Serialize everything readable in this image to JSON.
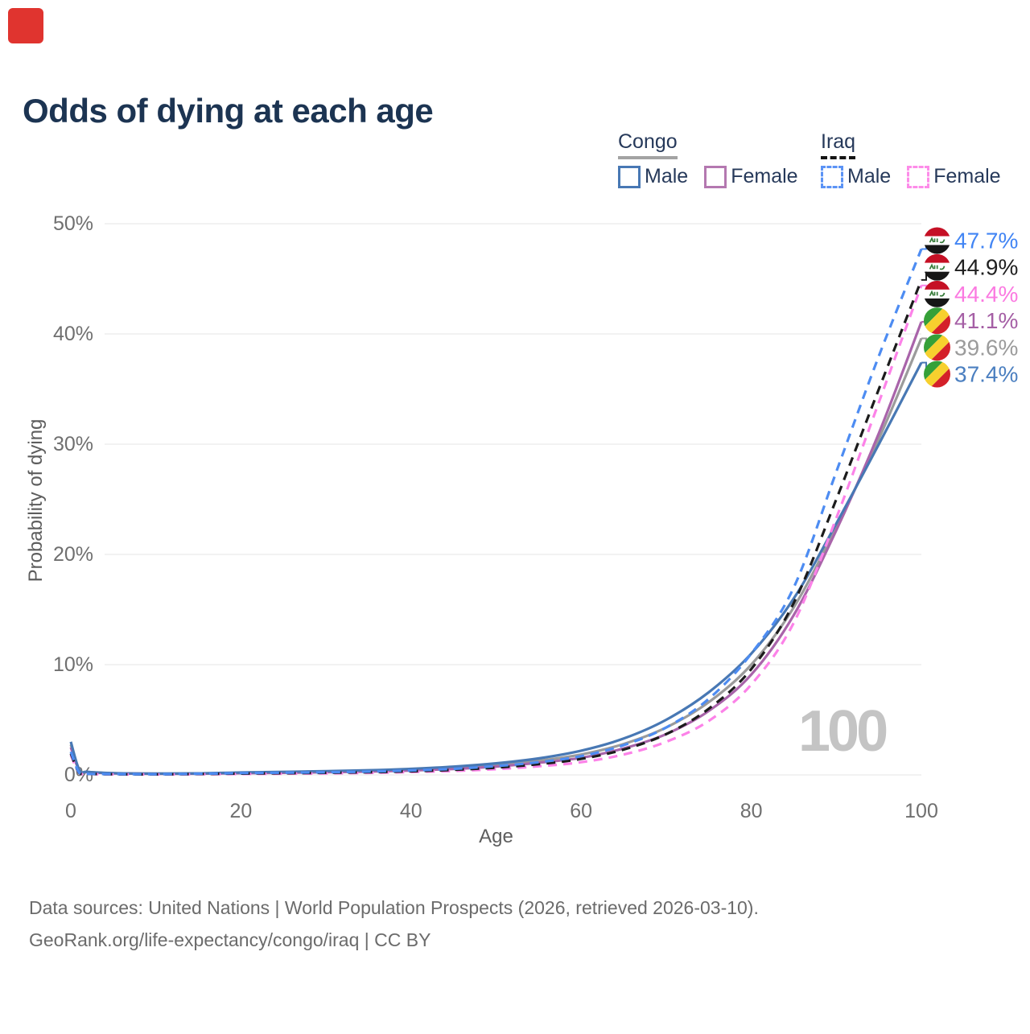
{
  "marker_color": "#e0342f",
  "title": "Odds of dying at each age",
  "legend": {
    "groups": [
      {
        "name": "Congo",
        "underline_style": "solid",
        "underline_color": "#a3a3a3",
        "items": [
          {
            "label": "Male",
            "color": "#4878b4",
            "dashed": false
          },
          {
            "label": "Female",
            "color": "#b478b0",
            "dashed": false
          }
        ]
      },
      {
        "name": "Iraq",
        "underline_style": "dashed",
        "underline_color": "#141414",
        "items": [
          {
            "label": "Male",
            "color": "#5b93f5",
            "dashed": true
          },
          {
            "label": "Female",
            "color": "#fd8ce9",
            "dashed": true
          }
        ]
      }
    ]
  },
  "chart_data": {
    "type": "line",
    "title": "Odds of dying at each age",
    "xlabel": "Age",
    "ylabel": "Probability of dying",
    "watermark": "100",
    "xlim": [
      0,
      100
    ],
    "ylim": [
      0,
      50
    ],
    "x_ticks": [
      0,
      20,
      40,
      60,
      80,
      100
    ],
    "y_ticks": [
      {
        "v": 0,
        "label": "0%"
      },
      {
        "v": 10,
        "label": "10%"
      },
      {
        "v": 20,
        "label": "20%"
      },
      {
        "v": 30,
        "label": "30%"
      },
      {
        "v": 40,
        "label": "40%"
      },
      {
        "v": 50,
        "label": "50%"
      }
    ],
    "grid": true,
    "legend_position": "top-right",
    "x": [
      0,
      1,
      2,
      5,
      10,
      15,
      20,
      25,
      30,
      35,
      40,
      45,
      50,
      55,
      60,
      65,
      70,
      75,
      80,
      85,
      90,
      95,
      100
    ],
    "series": [
      {
        "id": "congo-both",
        "country": "Congo",
        "sex": "both",
        "flag": "congo",
        "color": "#9b9b9b",
        "dashed": false,
        "values": [
          2.75,
          0.42,
          0.26,
          0.15,
          0.11,
          0.12,
          0.18,
          0.23,
          0.29,
          0.36,
          0.47,
          0.64,
          0.9,
          1.28,
          1.85,
          2.8,
          4.3,
          6.6,
          10.0,
          15.2,
          22.5,
          30.5,
          39.6
        ],
        "end_label": "39.6%",
        "label_color": "#9b9b9b"
      },
      {
        "id": "congo-female",
        "country": "Congo",
        "sex": "female",
        "flag": "congo",
        "color": "#a964aa",
        "dashed": false,
        "values": [
          2.5,
          0.4,
          0.25,
          0.14,
          0.1,
          0.11,
          0.15,
          0.19,
          0.24,
          0.3,
          0.4,
          0.54,
          0.76,
          1.1,
          1.55,
          2.4,
          3.7,
          5.8,
          9.1,
          14.5,
          22.2,
          31.0,
          41.1
        ],
        "end_label": "41.1%",
        "label_color": "#a55fa5"
      },
      {
        "id": "congo-male",
        "country": "Congo",
        "sex": "male",
        "flag": "congo",
        "color": "#4878b4",
        "dashed": false,
        "values": [
          3.0,
          0.45,
          0.28,
          0.16,
          0.12,
          0.14,
          0.22,
          0.28,
          0.34,
          0.42,
          0.55,
          0.75,
          1.05,
          1.5,
          2.2,
          3.3,
          5.0,
          7.5,
          11.0,
          16.0,
          22.8,
          30.0,
          37.4
        ],
        "end_label": "37.4%",
        "label_color": "#4b7fc0"
      },
      {
        "id": "iraq-female",
        "country": "Iraq",
        "sex": "female",
        "flag": "iraq",
        "color": "#fc82e8",
        "dashed": true,
        "values": [
          1.8,
          0.15,
          0.08,
          0.05,
          0.045,
          0.06,
          0.08,
          0.11,
          0.14,
          0.18,
          0.26,
          0.36,
          0.52,
          0.78,
          1.15,
          1.85,
          3.0,
          4.9,
          8.2,
          13.8,
          23.3,
          33.8,
          44.4
        ],
        "end_label": "44.4%",
        "label_color": "#fb7ae1"
      },
      {
        "id": "iraq-both",
        "country": "Iraq",
        "sex": "both",
        "flag": "iraq",
        "color": "#1c1c1c",
        "dashed": true,
        "values": [
          1.95,
          0.16,
          0.09,
          0.06,
          0.05,
          0.08,
          0.12,
          0.15,
          0.19,
          0.24,
          0.33,
          0.46,
          0.66,
          0.97,
          1.45,
          2.3,
          3.7,
          6.0,
          9.6,
          15.6,
          25.0,
          35.0,
          44.9
        ],
        "end_label": "44.9%",
        "label_color": "#1f1f1f"
      },
      {
        "id": "iraq-male",
        "country": "Iraq",
        "sex": "male",
        "flag": "iraq",
        "color": "#4d8cf2",
        "dashed": true,
        "values": [
          2.1,
          0.18,
          0.1,
          0.07,
          0.06,
          0.1,
          0.16,
          0.2,
          0.24,
          0.3,
          0.4,
          0.55,
          0.8,
          1.15,
          1.7,
          2.7,
          4.3,
          6.9,
          11.0,
          17.0,
          27.5,
          38.0,
          47.7
        ],
        "end_label": "47.7%",
        "label_color": "#4285f4"
      }
    ]
  },
  "footer": {
    "line1": "Data sources: United Nations | World Population Prospects (2026, retrieved 2026-03-10).",
    "line2": "GeoRank.org/life-expectancy/congo/iraq | CC BY"
  }
}
